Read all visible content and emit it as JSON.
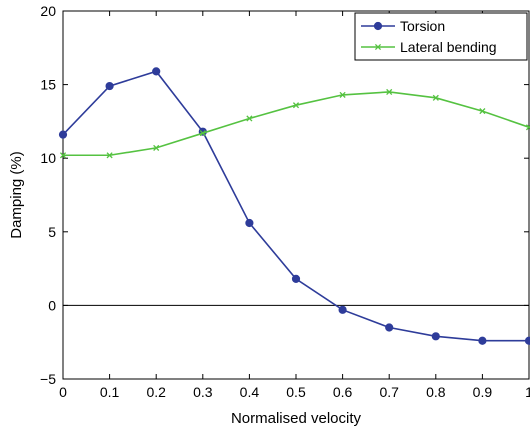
{
  "chart_data": {
    "type": "line",
    "xlabel": "Normalised velocity",
    "ylabel": "Damping (%)",
    "xlim": [
      0,
      1
    ],
    "ylim": [
      -5,
      20
    ],
    "x_ticks": [
      "0",
      "0.1",
      "0.2",
      "0.3",
      "0.4",
      "0.5",
      "0.6",
      "0.7",
      "0.8",
      "0.9",
      "1"
    ],
    "y_ticks": [
      "−5",
      "0",
      "5",
      "10",
      "15",
      "20"
    ],
    "grid": false,
    "zero_line": true,
    "legend_position": "top-right",
    "x": [
      0,
      0.1,
      0.2,
      0.3,
      0.4,
      0.5,
      0.6,
      0.7,
      0.8,
      0.9,
      1.0
    ],
    "series": [
      {
        "name": "Torsion",
        "color": "#2e3c9a",
        "marker": "circle",
        "values": [
          11.6,
          14.9,
          15.9,
          11.8,
          5.6,
          1.8,
          -0.3,
          -1.5,
          -2.1,
          -2.4,
          -2.4
        ]
      },
      {
        "name": "Lateral bending",
        "color": "#55c241",
        "marker": "x",
        "values": [
          10.2,
          10.2,
          10.7,
          11.7,
          12.7,
          13.6,
          14.3,
          14.5,
          14.1,
          13.2,
          12.1
        ]
      }
    ]
  }
}
